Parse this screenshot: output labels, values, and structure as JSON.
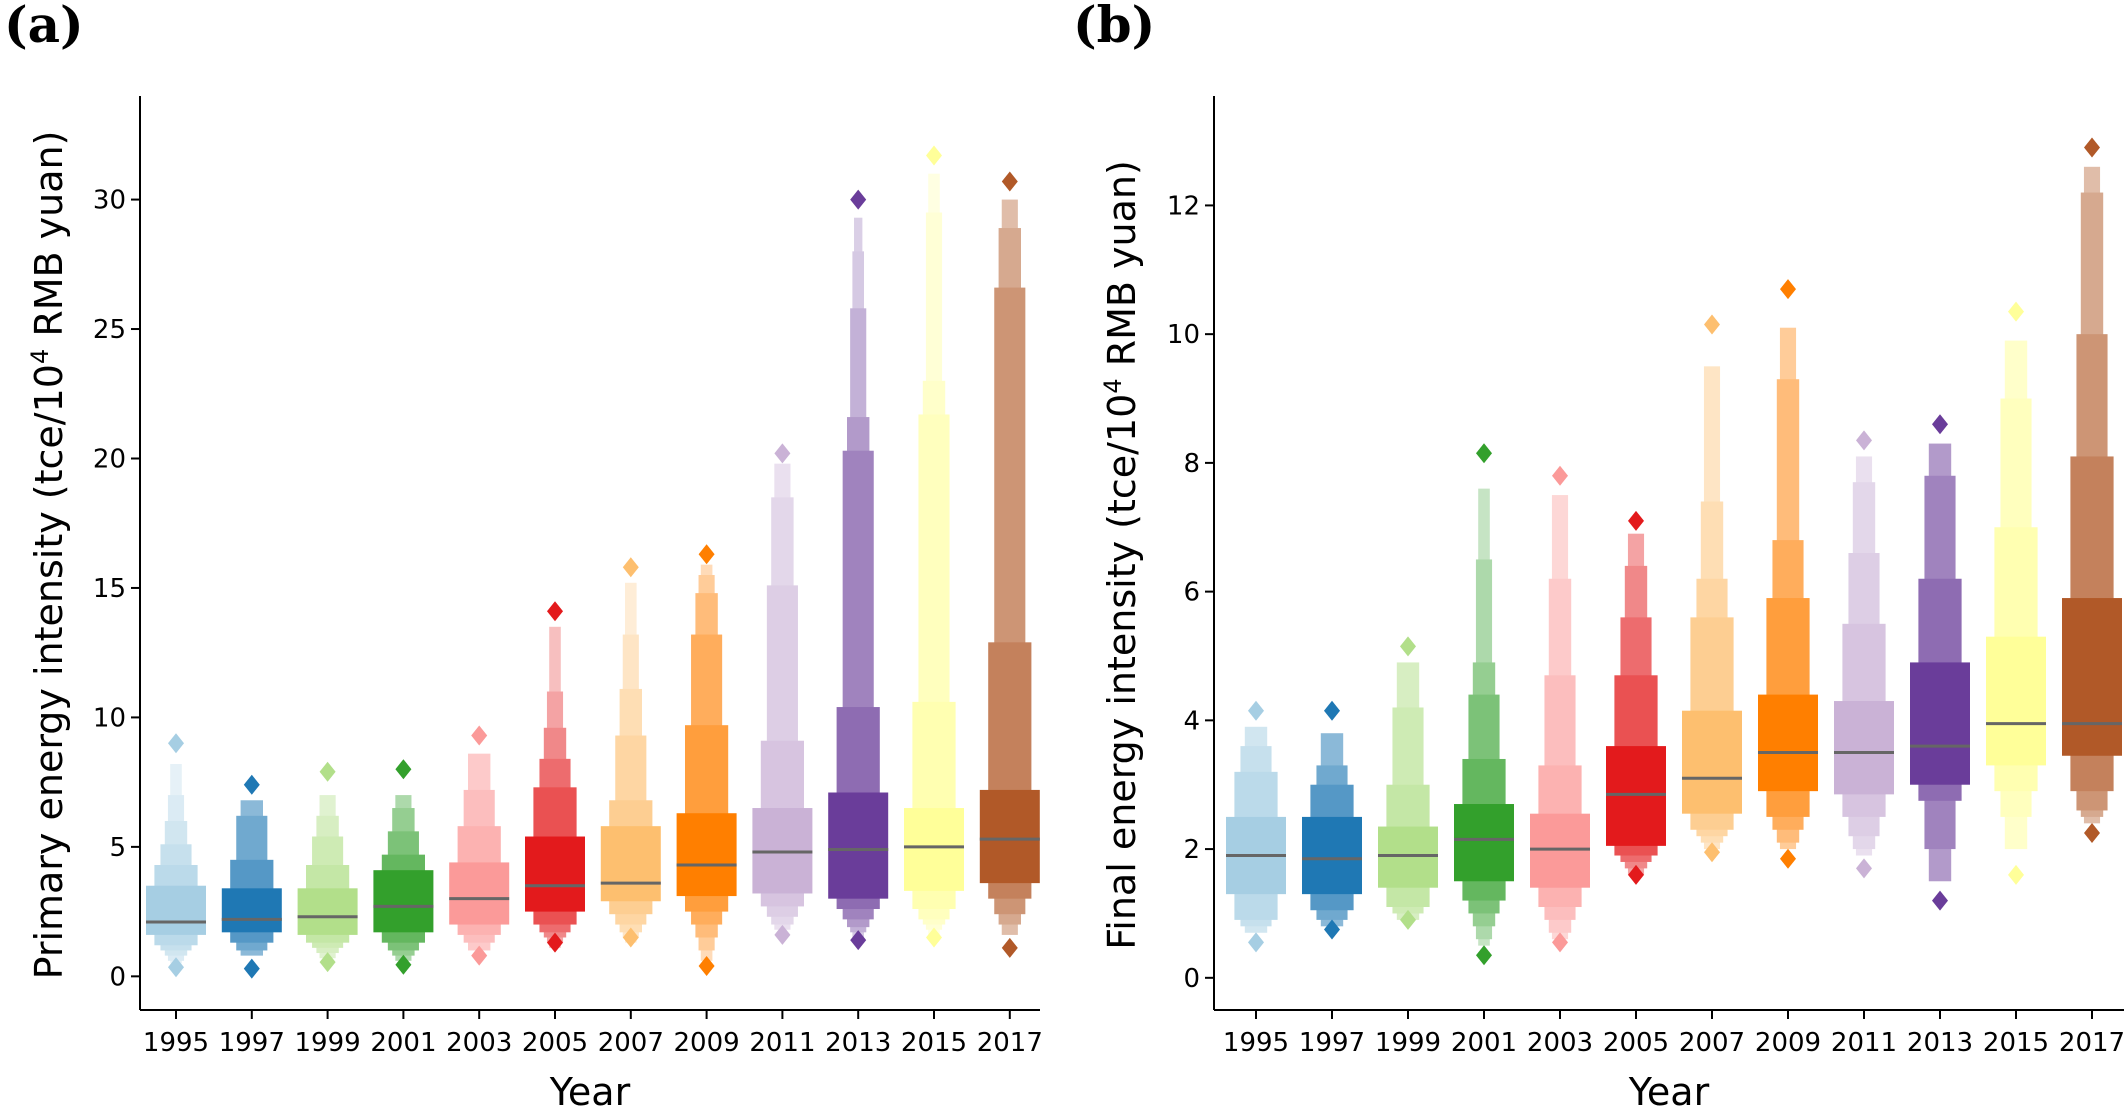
{
  "chart_data": [
    {
      "type": "boxen",
      "panel_label": "(a)",
      "xlabel": "Year",
      "ylabel_main": "Primary energy intensity (tce/10",
      "ylabel_sup": "4",
      "ylabel_tail": " RMB yuan)",
      "ylim": [
        -1.3,
        34
      ],
      "yticks": [
        0,
        5,
        10,
        15,
        20,
        25,
        30
      ],
      "categories": [
        "1995",
        "1997",
        "1999",
        "2001",
        "2003",
        "2005",
        "2007",
        "2009",
        "2011",
        "2013",
        "2015",
        "2017"
      ],
      "colors": [
        "#a6cee3",
        "#1f78b4",
        "#b2df8a",
        "#33a02c",
        "#fb9a99",
        "#e31a1c",
        "#fdbf6f",
        "#ff7f00",
        "#cab2d6",
        "#6a3d9a",
        "#ffff99",
        "#b15928"
      ],
      "series": [
        {
          "median": 2.1,
          "levels": [
            [
              1.6,
              3.5
            ],
            [
              1.2,
              4.3
            ],
            [
              1.0,
              5.1
            ],
            [
              0.8,
              6.0
            ],
            [
              0.6,
              7.0
            ],
            [
              0.5,
              8.2
            ]
          ],
          "outliers": [
            0.35,
            9.0
          ]
        },
        {
          "median": 2.2,
          "levels": [
            [
              1.7,
              3.4
            ],
            [
              1.3,
              4.5
            ],
            [
              1.0,
              6.2
            ],
            [
              0.8,
              6.8
            ]
          ],
          "outliers": [
            0.3,
            7.4
          ]
        },
        {
          "median": 2.3,
          "levels": [
            [
              1.6,
              3.4
            ],
            [
              1.3,
              4.3
            ],
            [
              1.1,
              5.4
            ],
            [
              0.9,
              6.2
            ],
            [
              0.7,
              7.0
            ]
          ],
          "outliers": [
            0.55,
            7.9
          ]
        },
        {
          "median": 2.7,
          "levels": [
            [
              1.7,
              4.1
            ],
            [
              1.3,
              4.7
            ],
            [
              1.0,
              5.6
            ],
            [
              0.8,
              6.5
            ],
            [
              0.6,
              7.0
            ]
          ],
          "outliers": [
            0.45,
            8.0
          ]
        },
        {
          "median": 3.0,
          "levels": [
            [
              2.0,
              4.4
            ],
            [
              1.6,
              5.8
            ],
            [
              1.3,
              7.2
            ],
            [
              1.0,
              8.6
            ]
          ],
          "outliers": [
            0.8,
            9.3
          ]
        },
        {
          "median": 3.5,
          "levels": [
            [
              2.5,
              5.4
            ],
            [
              2.0,
              7.3
            ],
            [
              1.7,
              8.4
            ],
            [
              1.5,
              9.6
            ],
            [
              1.3,
              11.0
            ],
            [
              1.1,
              13.5
            ]
          ],
          "outliers": [
            1.3,
            14.1
          ]
        },
        {
          "median": 3.6,
          "levels": [
            [
              2.9,
              5.8
            ],
            [
              2.4,
              6.8
            ],
            [
              2.0,
              9.3
            ],
            [
              1.7,
              11.1
            ],
            [
              1.5,
              13.2
            ],
            [
              1.3,
              15.2
            ]
          ],
          "outliers": [
            1.5,
            15.8
          ]
        },
        {
          "median": 4.3,
          "levels": [
            [
              3.1,
              6.3
            ],
            [
              2.5,
              9.7
            ],
            [
              2.0,
              13.2
            ],
            [
              1.5,
              14.8
            ],
            [
              1.0,
              15.5
            ],
            [
              0.6,
              15.9
            ]
          ],
          "outliers": [
            0.4,
            16.3
          ]
        },
        {
          "median": 4.8,
          "levels": [
            [
              3.2,
              6.5
            ],
            [
              2.7,
              9.1
            ],
            [
              2.3,
              15.1
            ],
            [
              2.0,
              18.5
            ],
            [
              1.8,
              19.8
            ]
          ],
          "outliers": [
            1.6,
            20.2
          ]
        },
        {
          "median": 4.9,
          "levels": [
            [
              3.0,
              7.1
            ],
            [
              2.6,
              10.4
            ],
            [
              2.2,
              20.3
            ],
            [
              1.9,
              21.6
            ],
            [
              1.7,
              25.8
            ],
            [
              1.5,
              28.0
            ],
            [
              1.3,
              29.3
            ]
          ],
          "outliers": [
            1.4,
            30.0
          ]
        },
        {
          "median": 5.0,
          "levels": [
            [
              3.3,
              6.5
            ],
            [
              2.6,
              10.6
            ],
            [
              2.2,
              21.7
            ],
            [
              2.0,
              23.0
            ],
            [
              1.8,
              29.5
            ],
            [
              1.6,
              31.0
            ]
          ],
          "outliers": [
            1.5,
            31.7
          ]
        },
        {
          "median": 5.3,
          "levels": [
            [
              3.6,
              7.2
            ],
            [
              3.0,
              12.9
            ],
            [
              2.4,
              26.6
            ],
            [
              2.0,
              28.9
            ],
            [
              1.6,
              30.0
            ]
          ],
          "outliers": [
            1.1,
            30.7
          ]
        }
      ]
    },
    {
      "type": "boxen",
      "panel_label": "(b)",
      "xlabel": "Year",
      "ylabel_main": "Final energy intensity (tce/10",
      "ylabel_sup": "4",
      "ylabel_tail": " RMB yuan)",
      "ylim": [
        -0.5,
        13.7
      ],
      "yticks": [
        0,
        2,
        4,
        6,
        8,
        10,
        12
      ],
      "categories": [
        "1995",
        "1997",
        "1999",
        "2001",
        "2003",
        "2005",
        "2007",
        "2009",
        "2011",
        "2013",
        "2015",
        "2017"
      ],
      "colors": [
        "#a6cee3",
        "#1f78b4",
        "#b2df8a",
        "#33a02c",
        "#fb9a99",
        "#e31a1c",
        "#fdbf6f",
        "#ff7f00",
        "#cab2d6",
        "#6a3d9a",
        "#ffff99",
        "#b15928"
      ],
      "series": [
        {
          "median": 1.9,
          "levels": [
            [
              1.3,
              2.5
            ],
            [
              0.9,
              3.2
            ],
            [
              0.8,
              3.6
            ],
            [
              0.7,
              3.9
            ]
          ],
          "outliers": [
            0.55,
            4.15
          ]
        },
        {
          "median": 1.85,
          "levels": [
            [
              1.3,
              2.5
            ],
            [
              1.05,
              3.0
            ],
            [
              0.9,
              3.3
            ],
            [
              0.8,
              3.8
            ]
          ],
          "outliers": [
            0.75,
            4.15
          ]
        },
        {
          "median": 1.9,
          "levels": [
            [
              1.4,
              2.35
            ],
            [
              1.1,
              3.0
            ],
            [
              1.0,
              4.2
            ],
            [
              0.9,
              4.9
            ]
          ],
          "outliers": [
            0.9,
            5.15
          ]
        },
        {
          "median": 2.15,
          "levels": [
            [
              1.5,
              2.7
            ],
            [
              1.2,
              3.4
            ],
            [
              1.0,
              4.4
            ],
            [
              0.8,
              4.9
            ],
            [
              0.6,
              6.5
            ],
            [
              0.5,
              7.6
            ]
          ],
          "outliers": [
            0.35,
            8.15
          ]
        },
        {
          "median": 2.0,
          "levels": [
            [
              1.4,
              2.55
            ],
            [
              1.1,
              3.3
            ],
            [
              0.9,
              4.7
            ],
            [
              0.7,
              6.2
            ],
            [
              0.6,
              7.5
            ]
          ],
          "outliers": [
            0.55,
            7.8
          ]
        },
        {
          "median": 2.85,
          "levels": [
            [
              2.05,
              3.6
            ],
            [
              1.9,
              4.7
            ],
            [
              1.8,
              5.6
            ],
            [
              1.7,
              6.4
            ],
            [
              1.6,
              6.9
            ]
          ],
          "outliers": [
            1.6,
            7.1
          ]
        },
        {
          "median": 3.1,
          "levels": [
            [
              2.55,
              4.15
            ],
            [
              2.3,
              5.6
            ],
            [
              2.2,
              6.2
            ],
            [
              2.1,
              7.4
            ],
            [
              2.0,
              9.5
            ]
          ],
          "outliers": [
            1.95,
            10.15
          ]
        },
        {
          "median": 3.5,
          "levels": [
            [
              2.9,
              4.4
            ],
            [
              2.5,
              5.9
            ],
            [
              2.3,
              6.8
            ],
            [
              2.1,
              9.3
            ],
            [
              2.0,
              10.1
            ]
          ],
          "outliers": [
            1.85,
            10.7
          ]
        },
        {
          "median": 3.5,
          "levels": [
            [
              2.85,
              4.3
            ],
            [
              2.5,
              5.5
            ],
            [
              2.2,
              6.6
            ],
            [
              2.0,
              7.7
            ],
            [
              1.9,
              8.1
            ]
          ],
          "outliers": [
            1.7,
            8.35
          ]
        },
        {
          "median": 3.6,
          "levels": [
            [
              3.0,
              4.9
            ],
            [
              2.75,
              6.2
            ],
            [
              2.0,
              7.8
            ],
            [
              1.5,
              8.3
            ]
          ],
          "outliers": [
            1.2,
            8.6
          ]
        },
        {
          "median": 3.95,
          "levels": [
            [
              3.3,
              5.3
            ],
            [
              2.9,
              7.0
            ],
            [
              2.5,
              9.0
            ],
            [
              2.0,
              9.9
            ]
          ],
          "outliers": [
            1.6,
            10.35
          ]
        },
        {
          "median": 3.95,
          "levels": [
            [
              3.45,
              5.9
            ],
            [
              2.9,
              8.1
            ],
            [
              2.6,
              10.0
            ],
            [
              2.5,
              12.2
            ],
            [
              2.4,
              12.6
            ]
          ],
          "outliers": [
            2.25,
            12.9
          ]
        }
      ]
    }
  ]
}
